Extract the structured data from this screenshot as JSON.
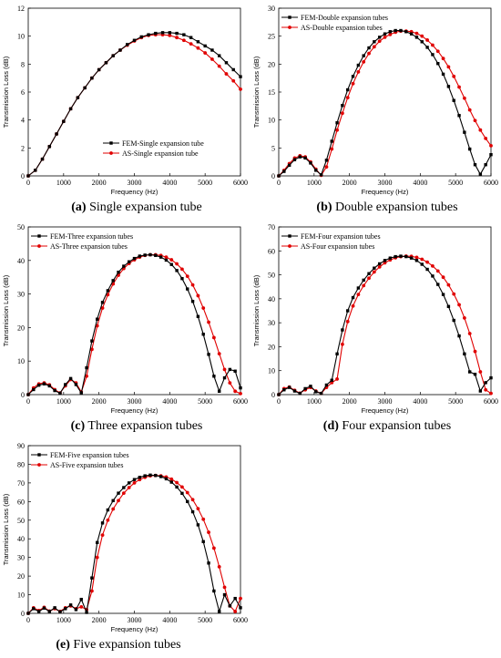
{
  "colors": {
    "fem": "#000000",
    "as": "#e00000"
  },
  "chart_data": [
    {
      "id": "a",
      "type": "line",
      "caption_letter": "(a)",
      "caption_text": " Single expansion tube",
      "xlabel": "Frequency (Hz)",
      "ylabel": "Transmission Loss (dB)",
      "xlim": [
        0,
        6000
      ],
      "ylim": [
        0,
        12
      ],
      "xticks": [
        0,
        1000,
        2000,
        3000,
        4000,
        5000,
        6000
      ],
      "yticks": [
        0,
        2,
        4,
        6,
        8,
        10,
        12
      ],
      "legend_position": "lower-right",
      "x": [
        0,
        200,
        400,
        600,
        800,
        1000,
        1200,
        1400,
        1600,
        1800,
        2000,
        2200,
        2400,
        2600,
        2800,
        3000,
        3200,
        3400,
        3600,
        3800,
        4000,
        4200,
        4400,
        4600,
        4800,
        5000,
        5200,
        5400,
        5600,
        5800,
        6000
      ],
      "series": [
        {
          "name": "FEM-Single expansion tube",
          "key": "fem",
          "values": [
            0.0,
            0.4,
            1.2,
            2.1,
            3.0,
            3.9,
            4.8,
            5.6,
            6.3,
            7.0,
            7.6,
            8.1,
            8.6,
            9.0,
            9.4,
            9.7,
            9.95,
            10.1,
            10.2,
            10.25,
            10.25,
            10.2,
            10.1,
            9.9,
            9.6,
            9.3,
            9.0,
            8.6,
            8.1,
            7.6,
            7.1
          ]
        },
        {
          "name": "AS-Single expansion tube",
          "key": "as",
          "values": [
            0.0,
            0.4,
            1.2,
            2.1,
            3.0,
            3.9,
            4.8,
            5.6,
            6.3,
            7.0,
            7.6,
            8.1,
            8.6,
            9.0,
            9.35,
            9.65,
            9.9,
            10.05,
            10.1,
            10.1,
            10.05,
            9.9,
            9.7,
            9.45,
            9.15,
            8.8,
            8.35,
            7.85,
            7.3,
            6.8,
            6.2
          ]
        }
      ]
    },
    {
      "id": "b",
      "type": "line",
      "caption_letter": "(b)",
      "caption_text": " Double expansion tubes",
      "xlabel": "Frequency (Hz)",
      "ylabel": "Transmission Loss (dB)",
      "xlim": [
        0,
        6000
      ],
      "ylim": [
        0,
        30
      ],
      "xticks": [
        0,
        1000,
        2000,
        3000,
        4000,
        5000,
        6000
      ],
      "yticks": [
        0,
        5,
        10,
        15,
        20,
        25,
        30
      ],
      "legend_position": "upper-left",
      "x": [
        0,
        150,
        300,
        450,
        600,
        750,
        900,
        1050,
        1200,
        1350,
        1500,
        1650,
        1800,
        1950,
        2100,
        2250,
        2400,
        2550,
        2700,
        2850,
        3000,
        3150,
        3300,
        3450,
        3600,
        3750,
        3900,
        4050,
        4200,
        4350,
        4500,
        4650,
        4800,
        4950,
        5100,
        5250,
        5400,
        5550,
        5700,
        5850,
        6000
      ],
      "series": [
        {
          "name": "FEM-Double expansion tubes",
          "key": "fem",
          "values": [
            0.0,
            0.8,
            1.9,
            2.9,
            3.4,
            3.2,
            2.3,
            1.0,
            0.2,
            2.8,
            6.2,
            9.5,
            12.6,
            15.4,
            17.8,
            19.8,
            21.5,
            22.9,
            24.0,
            24.8,
            25.4,
            25.8,
            26.0,
            26.0,
            25.8,
            25.4,
            24.8,
            24.0,
            23.0,
            21.7,
            20.1,
            18.2,
            16.0,
            13.5,
            10.8,
            7.8,
            4.8,
            2.0,
            0.3,
            2.0,
            3.8
          ]
        },
        {
          "name": "AS-Double expansion tubes",
          "key": "as",
          "values": [
            0.0,
            1.0,
            2.2,
            3.2,
            3.6,
            3.4,
            2.5,
            1.2,
            0.1,
            1.6,
            4.8,
            8.2,
            11.2,
            14.0,
            16.5,
            18.6,
            20.4,
            21.9,
            23.1,
            24.1,
            24.8,
            25.3,
            25.7,
            25.9,
            25.9,
            25.8,
            25.5,
            25.0,
            24.3,
            23.4,
            22.3,
            21.0,
            19.5,
            17.8,
            15.9,
            13.9,
            11.8,
            9.9,
            8.2,
            6.7,
            5.4
          ]
        }
      ]
    },
    {
      "id": "c",
      "type": "line",
      "caption_letter": "(c)",
      "caption_text": " Three expansion tubes",
      "xlabel": "Frequency (Hz)",
      "ylabel": "Transmission Loss (dB)",
      "xlim": [
        0,
        6000
      ],
      "ylim": [
        0,
        50
      ],
      "xticks": [
        0,
        1000,
        2000,
        3000,
        4000,
        5000,
        6000
      ],
      "yticks": [
        0,
        10,
        20,
        30,
        40,
        50
      ],
      "legend_position": "upper-left",
      "x": [
        0,
        150,
        300,
        450,
        600,
        750,
        900,
        1050,
        1200,
        1350,
        1500,
        1650,
        1800,
        1950,
        2100,
        2250,
        2400,
        2550,
        2700,
        2850,
        3000,
        3150,
        3300,
        3450,
        3600,
        3750,
        3900,
        4050,
        4200,
        4350,
        4500,
        4650,
        4800,
        4950,
        5100,
        5250,
        5400,
        5550,
        5700,
        5850,
        6000
      ],
      "series": [
        {
          "name": "FEM-Three expansion tubes",
          "key": "fem",
          "values": [
            0.0,
            1.5,
            2.8,
            3.2,
            2.6,
            1.2,
            0.4,
            3.0,
            4.8,
            3.0,
            0.5,
            8.0,
            16.0,
            22.5,
            27.5,
            31.0,
            34.0,
            36.5,
            38.3,
            39.6,
            40.6,
            41.3,
            41.6,
            41.7,
            41.5,
            41.0,
            40.1,
            38.8,
            37.0,
            34.6,
            31.5,
            27.8,
            23.3,
            18.0,
            12.0,
            5.5,
            1.0,
            5.0,
            7.5,
            7.0,
            2.0
          ]
        },
        {
          "name": "AS-Three expansion tubes",
          "key": "as",
          "values": [
            0.0,
            2.0,
            3.2,
            3.5,
            2.9,
            1.5,
            0.5,
            2.6,
            4.5,
            3.5,
            0.8,
            5.5,
            13.5,
            20.5,
            25.8,
            29.8,
            33.0,
            35.6,
            37.6,
            39.1,
            40.2,
            41.0,
            41.5,
            41.7,
            41.7,
            41.5,
            41.0,
            40.2,
            39.0,
            37.4,
            35.3,
            32.7,
            29.5,
            25.8,
            21.6,
            17.0,
            12.2,
            7.5,
            3.5,
            1.0,
            0.3
          ]
        }
      ]
    },
    {
      "id": "d",
      "type": "line",
      "caption_letter": "(d)",
      "caption_text": " Four expansion tubes",
      "xlabel": "Frequency (Hz)",
      "ylabel": "Transmission Loss (dB)",
      "xlim": [
        0,
        6000
      ],
      "ylim": [
        0,
        70
      ],
      "xticks": [
        0,
        1000,
        2000,
        3000,
        4000,
        5000,
        6000
      ],
      "yticks": [
        0,
        10,
        20,
        30,
        40,
        50,
        60,
        70
      ],
      "legend_position": "upper-left",
      "x": [
        0,
        150,
        300,
        450,
        600,
        750,
        900,
        1050,
        1200,
        1350,
        1500,
        1650,
        1800,
        1950,
        2100,
        2250,
        2400,
        2550,
        2700,
        2850,
        3000,
        3150,
        3300,
        3450,
        3600,
        3750,
        3900,
        4050,
        4200,
        4350,
        4500,
        4650,
        4800,
        4950,
        5100,
        5250,
        5400,
        5550,
        5700,
        5850,
        6000
      ],
      "series": [
        {
          "name": "FEM-Four expansion tubes",
          "key": "fem",
          "values": [
            0.0,
            2.0,
            3.0,
            1.5,
            0.5,
            2.5,
            3.5,
            1.2,
            0.5,
            4.0,
            6.0,
            17.0,
            27.0,
            35.0,
            40.5,
            44.5,
            47.8,
            50.5,
            52.8,
            54.6,
            56.0,
            57.0,
            57.6,
            57.8,
            57.6,
            57.0,
            56.0,
            54.4,
            52.3,
            49.5,
            46.0,
            41.8,
            36.8,
            31.0,
            24.5,
            17.0,
            9.5,
            8.5,
            1.5,
            5.0,
            7.0
          ]
        },
        {
          "name": "AS-Four expansion tubes",
          "key": "as",
          "values": [
            0.0,
            2.5,
            3.2,
            1.8,
            0.6,
            2.0,
            3.0,
            1.5,
            0.5,
            3.0,
            5.0,
            6.5,
            21.0,
            30.5,
            37.0,
            41.8,
            45.5,
            48.6,
            51.2,
            53.3,
            55.0,
            56.2,
            57.1,
            57.6,
            57.8,
            57.7,
            57.3,
            56.5,
            55.3,
            53.7,
            51.6,
            49.0,
            45.8,
            42.0,
            37.5,
            32.0,
            25.5,
            18.0,
            9.5,
            2.0,
            0.5
          ]
        }
      ]
    },
    {
      "id": "e",
      "type": "line",
      "caption_letter": "(e)",
      "caption_text": " Five expansion tubes",
      "xlabel": "Frequency (Hz)",
      "ylabel": "Transmission Loss (dB)",
      "xlim": [
        0,
        6000
      ],
      "ylim": [
        0,
        90
      ],
      "xticks": [
        0,
        1000,
        2000,
        3000,
        4000,
        5000,
        6000
      ],
      "yticks": [
        0,
        10,
        20,
        30,
        40,
        50,
        60,
        70,
        80,
        90
      ],
      "legend_position": "upper-left",
      "x": [
        0,
        150,
        300,
        450,
        600,
        750,
        900,
        1050,
        1200,
        1350,
        1500,
        1650,
        1800,
        1950,
        2100,
        2250,
        2400,
        2550,
        2700,
        2850,
        3000,
        3150,
        3300,
        3450,
        3600,
        3750,
        3900,
        4050,
        4200,
        4350,
        4500,
        4650,
        4800,
        4950,
        5100,
        5250,
        5400,
        5550,
        5700,
        5850,
        6000
      ],
      "series": [
        {
          "name": "FEM-Five expansion tubes",
          "key": "fem",
          "values": [
            0.0,
            2.5,
            1.0,
            2.8,
            1.0,
            3.0,
            0.8,
            2.5,
            4.5,
            2.0,
            7.5,
            0.5,
            19.0,
            38.0,
            48.5,
            55.5,
            60.5,
            64.5,
            67.5,
            70.0,
            71.8,
            73.0,
            73.8,
            74.2,
            74.0,
            73.4,
            72.2,
            70.4,
            67.8,
            64.4,
            60.0,
            54.5,
            47.5,
            38.5,
            27.0,
            12.0,
            1.0,
            10.0,
            4.0,
            8.0,
            3.0
          ]
        },
        {
          "name": "AS-Five expansion tubes",
          "key": "as",
          "values": [
            0.0,
            3.0,
            1.5,
            3.2,
            1.2,
            2.5,
            1.0,
            3.0,
            4.0,
            2.5,
            3.5,
            2.0,
            12.0,
            30.0,
            42.0,
            50.0,
            56.0,
            60.5,
            64.5,
            67.5,
            70.0,
            71.8,
            73.0,
            73.8,
            74.0,
            73.8,
            73.2,
            72.0,
            70.2,
            67.8,
            64.8,
            61.0,
            56.2,
            50.5,
            43.5,
            35.0,
            25.0,
            14.0,
            4.0,
            1.0,
            8.0
          ]
        }
      ]
    }
  ]
}
